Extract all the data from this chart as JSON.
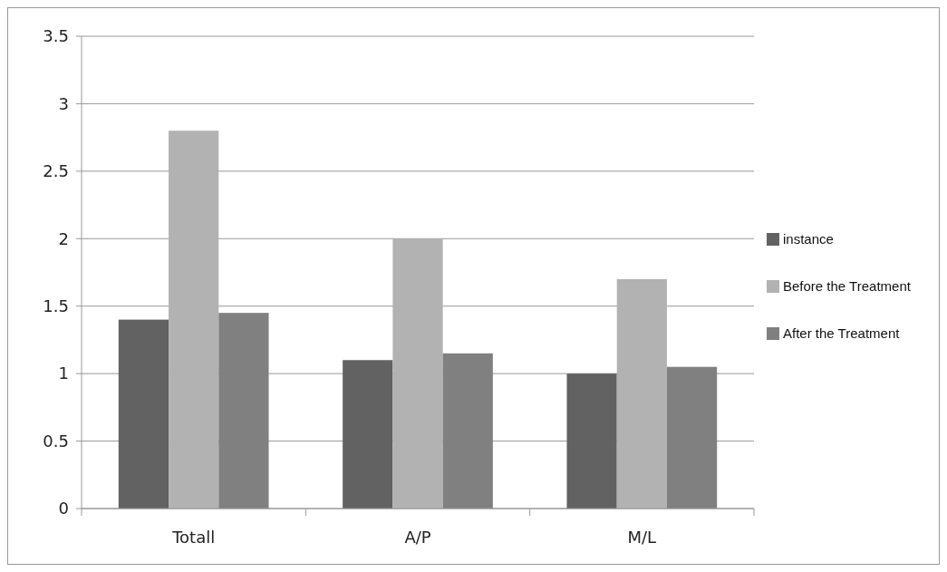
{
  "chart_data": {
    "type": "bar",
    "categories": [
      "Totall",
      "A/P",
      "M/L"
    ],
    "series": [
      {
        "name": "instance",
        "color": "#626262",
        "values": [
          1.4,
          1.1,
          1.0
        ]
      },
      {
        "name": "Before the Treatment",
        "color": "#b2b2b2",
        "values": [
          2.8,
          2.0,
          1.7
        ]
      },
      {
        "name": "After the Treatment",
        "color": "#808080",
        "values": [
          1.45,
          1.15,
          1.05
        ]
      }
    ],
    "ylim": [
      0,
      3.5
    ],
    "yticks": [
      0,
      0.5,
      1,
      1.5,
      2,
      2.5,
      3,
      3.5
    ],
    "grid": "y",
    "legend": "right"
  }
}
